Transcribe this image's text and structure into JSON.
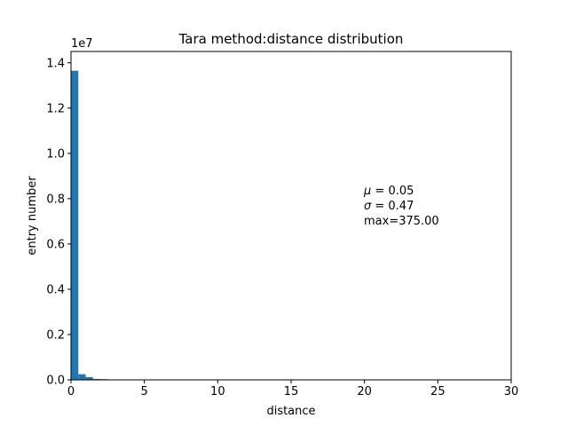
{
  "chart_data": {
    "type": "bar",
    "title": "Tara method:distance distribution",
    "xlabel": "distance",
    "ylabel": "entry number",
    "y_scale_label": "1e7",
    "xlim": [
      0,
      30
    ],
    "ylim": [
      0,
      1.45
    ],
    "x_ticks": [
      0,
      5,
      10,
      15,
      20,
      25,
      30
    ],
    "y_ticks": [
      0.0,
      0.2,
      0.4,
      0.6,
      0.8,
      1.0,
      1.2,
      1.4
    ],
    "bin_width": 0.5,
    "bins": [
      {
        "x": 0.0,
        "value": 1.365
      },
      {
        "x": 0.5,
        "value": 0.025
      },
      {
        "x": 1.0,
        "value": 0.012
      },
      {
        "x": 1.5,
        "value": 0.004
      },
      {
        "x": 2.0,
        "value": 0.003
      },
      {
        "x": 2.5,
        "value": 0.001
      }
    ],
    "bar_color": "#1f77b4",
    "grid": false,
    "annotation": {
      "mu_symbol": "μ",
      "mu_value": " = 0.05",
      "sigma_symbol": "σ",
      "sigma_value": " = 0.47",
      "max_text": "max=375.00"
    }
  }
}
